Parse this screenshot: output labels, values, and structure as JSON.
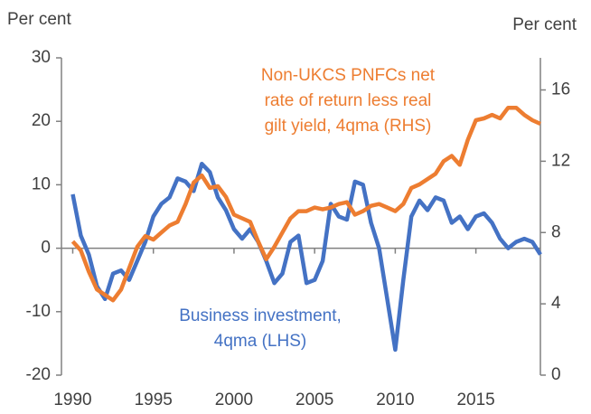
{
  "chart_data": {
    "type": "line",
    "y_label": "Per cent",
    "y2_label": "Per cent",
    "annotations": [
      {
        "lines": [
          "Non-UKCS PNFCs net",
          "rate of return less real",
          "gilt yield, 4qma (RHS)"
        ],
        "color": "#ed7d31"
      },
      {
        "lines": [
          "Business investment,",
          "4qma (LHS)"
        ],
        "color": "#4472c4"
      }
    ],
    "x": [
      1990,
      1990.5,
      1991,
      1991.5,
      1992,
      1992.5,
      1993,
      1993.5,
      1994,
      1994.5,
      1995,
      1995.5,
      1996,
      1996.5,
      1997,
      1997.5,
      1998,
      1998.5,
      1999,
      1999.5,
      2000,
      2000.5,
      2001,
      2001.5,
      2002,
      2002.5,
      2003,
      2003.5,
      2004,
      2004.5,
      2005,
      2005.5,
      2006,
      2006.5,
      2007,
      2007.5,
      2008,
      2008.5,
      2009,
      2009.5,
      2010,
      2010.5,
      2011,
      2011.5,
      2012,
      2012.5,
      2013,
      2013.5,
      2014,
      2014.5,
      2015,
      2015.5,
      2016,
      2016.5,
      2017,
      2017.5,
      2018,
      2018.5,
      2019
    ],
    "series": [
      {
        "name": "Business investment, 4qma (LHS)",
        "color": "#4472c4",
        "axis": "y",
        "values": [
          8.5,
          2,
          -1,
          -6,
          -8,
          -4,
          -3.5,
          -5,
          -2,
          1,
          5,
          7,
          8,
          11,
          10.5,
          9,
          13.3,
          12,
          8,
          6,
          3,
          1.5,
          3,
          1,
          -2,
          -5.5,
          -4,
          1,
          2,
          -5.5,
          -5,
          -2,
          7,
          5,
          4.5,
          10.5,
          10,
          4,
          0,
          -8,
          -16,
          -5,
          5,
          7.5,
          6,
          8,
          7.5,
          4,
          5,
          3,
          5,
          5.5,
          4,
          1.5,
          0,
          1,
          1.5,
          1,
          -1
        ]
      },
      {
        "name": "Non-UKCS PNFCs net rate of return less real gilt yield, 4qma (RHS)",
        "color": "#ed7d31",
        "axis": "y2",
        "values": [
          7.5,
          7,
          5.8,
          4.8,
          4.5,
          4.2,
          4.8,
          6,
          7.2,
          7.8,
          7.6,
          8,
          8.4,
          8.6,
          9.6,
          10.8,
          11.2,
          10.5,
          10.6,
          10,
          9,
          8.8,
          8.6,
          7.5,
          6.5,
          7.2,
          8,
          8.8,
          9.2,
          9.2,
          9.4,
          9.3,
          9.4,
          9.6,
          9.7,
          9,
          9.2,
          9.5,
          9.6,
          9.4,
          9.2,
          9.6,
          10.5,
          10.7,
          11,
          11.3,
          12,
          12.3,
          11.8,
          13.2,
          14.3,
          14.4,
          14.6,
          14.4,
          15,
          15,
          14.6,
          14.3,
          14.1
        ]
      }
    ],
    "xlim": [
      1989.3,
      2019
    ],
    "xticks": [
      1990,
      1995,
      2000,
      2005,
      2010,
      2015
    ],
    "ylim": [
      -20,
      30
    ],
    "yticks": [
      -20,
      -10,
      0,
      10,
      20,
      30
    ],
    "y2lim": [
      0,
      17.8
    ],
    "y2ticks": [
      0,
      4,
      8,
      12,
      16
    ]
  }
}
